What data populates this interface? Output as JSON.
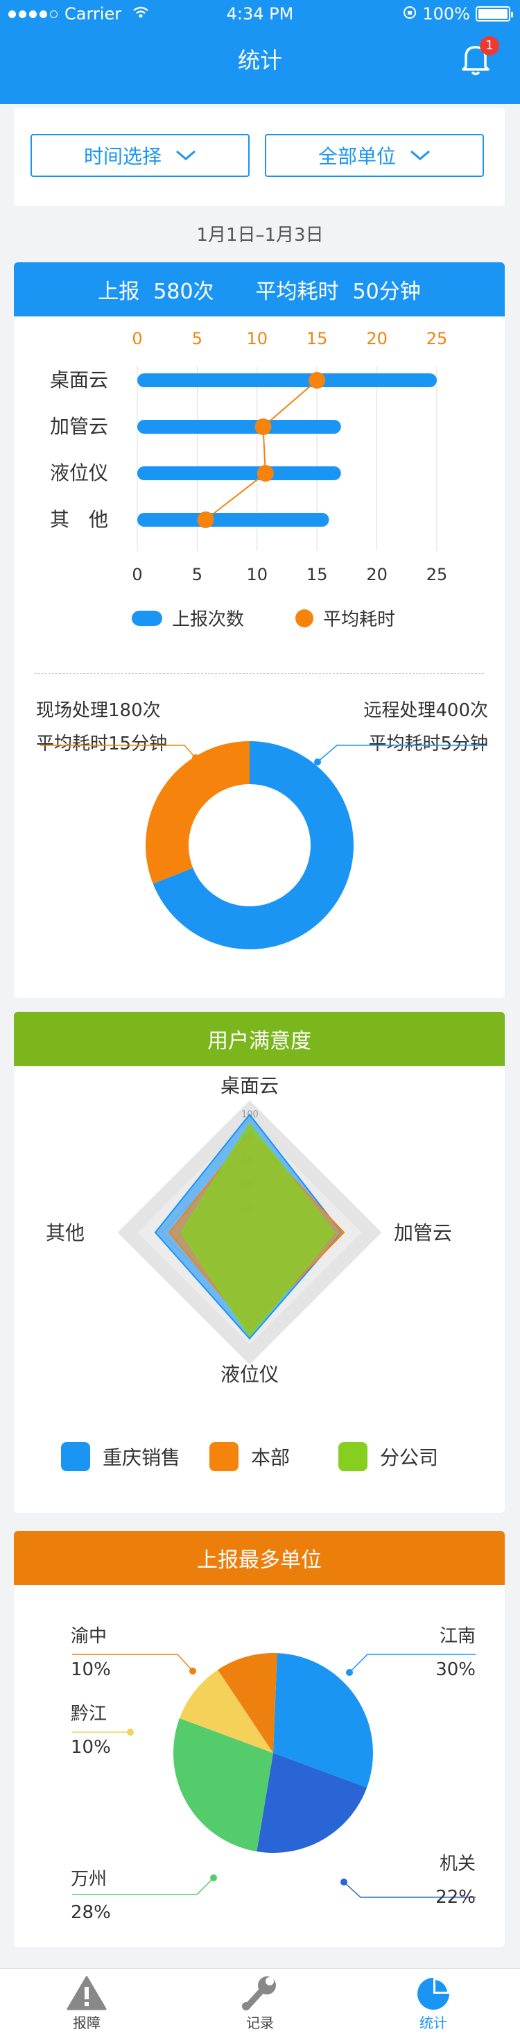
{
  "status_bar": {
    "carrier": "Carrier",
    "time": "4:34 PM",
    "battery": "100%"
  },
  "header": {
    "title": "统计",
    "notification_count": "1"
  },
  "filters": {
    "time_label": "时间选择",
    "unit_label": "全部单位"
  },
  "date_range": "1月1日–1月3日",
  "stats_banner": {
    "reports_label": "上报",
    "reports_value": "580次",
    "avg_label": "平均耗时",
    "avg_value": "50分钟"
  },
  "bar_chart": {
    "legend": {
      "count": "上报次数",
      "avg": "平均耗时"
    }
  },
  "donut": {
    "left_line1": "现场处理180次",
    "left_line2": "平均耗时15分钟",
    "right_line1": "远程处理400次",
    "right_line2": "平均耗时5分钟"
  },
  "satisfaction": {
    "title": "用户满意度",
    "legend": [
      "重庆销售",
      "本部",
      "分公司"
    ]
  },
  "top_units": {
    "title": "上报最多单位",
    "labels": {
      "yuzhong": {
        "name": "渝中",
        "pct": "10%"
      },
      "qianjiang": {
        "name": "黔江",
        "pct": "10%"
      },
      "wanzhou": {
        "name": "万州",
        "pct": "28%"
      },
      "jiangnan": {
        "name": "江南",
        "pct": "30%"
      },
      "jiguan": {
        "name": "机关",
        "pct": "22%"
      }
    }
  },
  "tabs": [
    "报障",
    "记录",
    "统计"
  ],
  "chart_data": [
    {
      "type": "bar",
      "orientation": "horizontal",
      "categories": [
        "桌面云",
        "加管云",
        "液位仪",
        "其　他"
      ],
      "series": [
        {
          "name": "上报次数",
          "values": [
            25,
            17,
            17,
            16
          ],
          "color": "#1a95f4"
        },
        {
          "name": "平均耗时",
          "values": [
            15,
            10.5,
            10.7,
            5.7
          ],
          "color": "#f5830c",
          "render": "line"
        }
      ],
      "x_ticks": [
        "0",
        "5",
        "10",
        "15",
        "20",
        "25"
      ],
      "xlim": [
        0,
        25
      ],
      "grid": true,
      "legend": "bottom"
    },
    {
      "type": "pie",
      "style": "donut",
      "slices": [
        {
          "label": "现场处理",
          "value": 180,
          "color": "#f5830c"
        },
        {
          "label": "远程处理",
          "value": 400,
          "color": "#1a95f4"
        }
      ]
    },
    {
      "type": "radar",
      "axes": [
        "桌面云",
        "加管云",
        "液位仪",
        "其他"
      ],
      "max": 100,
      "series": [
        {
          "name": "重庆销售",
          "values": [
            100,
            78,
            90,
            80
          ],
          "color": "#1a95f4"
        },
        {
          "name": "本部",
          "values": [
            85,
            80,
            82,
            68
          ],
          "color": "#f5830c"
        },
        {
          "name": "分公司",
          "values": [
            92,
            72,
            88,
            58
          ],
          "color": "#86cf1f"
        }
      ],
      "legend": "bottom"
    },
    {
      "type": "pie",
      "slices": [
        {
          "label": "江南",
          "value": 30,
          "color": "#1a95f4"
        },
        {
          "label": "机关",
          "value": 22,
          "color": "#2a65d6"
        },
        {
          "label": "万州",
          "value": 28,
          "color": "#55cc6c"
        },
        {
          "label": "黔江",
          "value": 10,
          "color": "#f4d25a"
        },
        {
          "label": "渝中",
          "value": 10,
          "color": "#ee800f"
        }
      ]
    }
  ]
}
